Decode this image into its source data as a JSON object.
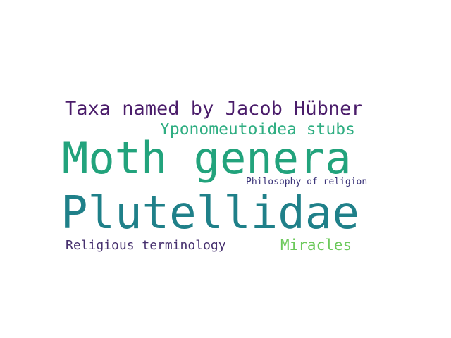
{
  "words": [
    {
      "id": "taxa",
      "text": "Taxa named by Jacob Hübner",
      "color": "#4a1c6a"
    },
    {
      "id": "ypono",
      "text": "Yponomeutoidea stubs",
      "color": "#2fae82"
    },
    {
      "id": "moth",
      "text": "Moth genera",
      "color": "#22a37c"
    },
    {
      "id": "philo",
      "text": "Philosophy of religion",
      "color": "#3b3479"
    },
    {
      "id": "plut",
      "text": "Plutellidae",
      "color": "#1f8089"
    },
    {
      "id": "relig",
      "text": "Religious terminology",
      "color": "#46306e"
    },
    {
      "id": "mira",
      "text": "Miracles",
      "color": "#6cc95b"
    }
  ]
}
